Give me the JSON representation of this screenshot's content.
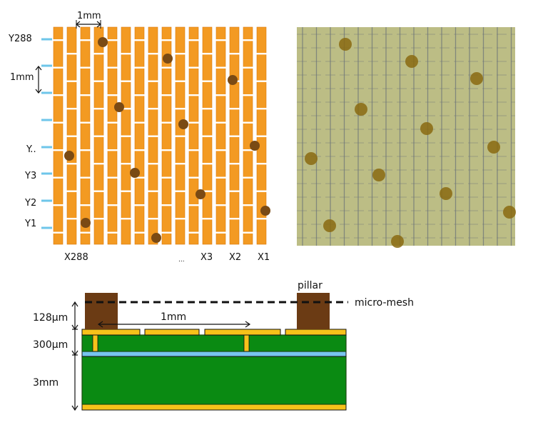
{
  "colors": {
    "strip": "#f39a22",
    "strip_edge": "#d97a0c",
    "gap_white": "#ffffff",
    "tick_blue": "#6ec6ea",
    "pillar_brown": "#6b3b14",
    "pillar_dot": "#7a4a14",
    "pcb_green": "#0a8a12",
    "pcb_edge": "#1a4a10",
    "pad_yellow": "#f7c21a",
    "glass_blue": "#77c4ee",
    "photo_bg": "#bcbd85",
    "photo_grid": "#6e7578",
    "photo_dot": "#8a6a10"
  },
  "top_view": {
    "scale_label": "1mm",
    "pitch_label": "1mm",
    "y_labels": [
      "Y288",
      "Y..",
      "Y3",
      "Y2",
      "Y1"
    ],
    "x_labels": [
      "X288",
      "...",
      "X3",
      "X2",
      "X1"
    ]
  },
  "cross_section": {
    "pillar_label": "pillar",
    "mesh_label": "micro-mesh",
    "pitch_label": "1mm",
    "layer_labels": [
      "128μm",
      "300μm",
      "3mm"
    ]
  }
}
